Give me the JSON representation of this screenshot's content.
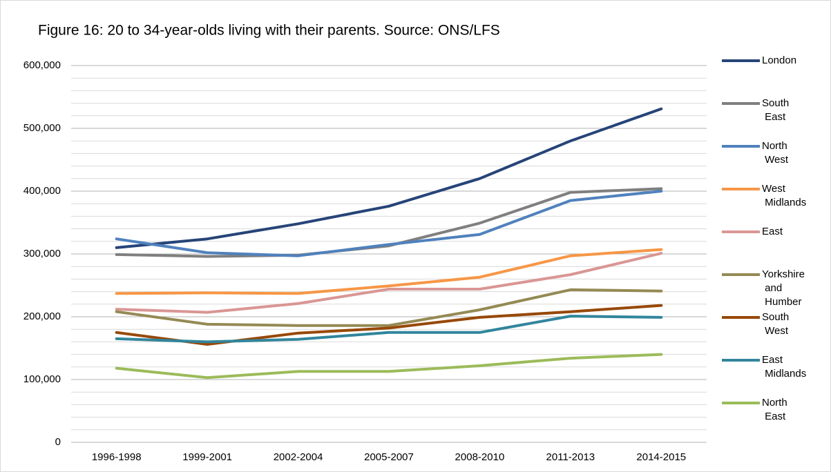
{
  "chart_data": {
    "type": "line",
    "title": "Figure 16: 20 to 34-year-olds living with their parents. Source: ONS/LFS",
    "categories": [
      "1996-1998",
      "1999-2001",
      "2002-2004",
      "2005-2007",
      "2008-2010",
      "2011-2013",
      "2014-2015"
    ],
    "ylim": [
      0,
      600000
    ],
    "yticks": [
      0,
      {
        "value": 100000,
        "label": "100,000"
      },
      {
        "value": 200000,
        "label": "200,000"
      },
      {
        "value": 300000,
        "label": "300,000"
      },
      {
        "value": 400000,
        "label": "400,000"
      },
      {
        "value": 500000,
        "label": "500,000"
      },
      {
        "value": 600000,
        "label": "600,000"
      }
    ],
    "yminorticks": [
      20000,
      40000,
      60000,
      80000,
      120000,
      140000,
      160000,
      180000,
      220000,
      240000,
      260000,
      280000,
      320000,
      340000,
      360000,
      380000,
      420000,
      440000,
      460000,
      480000,
      520000,
      540000,
      560000,
      580000
    ],
    "grid": true,
    "legend": "right",
    "series": [
      {
        "name": "London",
        "color": "#264478",
        "values": [
          310000,
          324000,
          348000,
          376000,
          420000,
          480000,
          531000
        ]
      },
      {
        "name": "South East",
        "color": "#7f7f7f",
        "values": [
          299000,
          296000,
          298000,
          313000,
          349000,
          398000,
          404000
        ]
      },
      {
        "name": "North West",
        "color": "#4f81bd",
        "values": [
          324000,
          302000,
          297000,
          315000,
          331000,
          385000,
          400000
        ]
      },
      {
        "name": "West Midlands",
        "color": "#f79646",
        "values": [
          237000,
          238000,
          237000,
          249000,
          263000,
          297000,
          307000
        ]
      },
      {
        "name": "East",
        "color": "#d99694",
        "values": [
          212000,
          207000,
          221000,
          244000,
          244000,
          267000,
          301000
        ]
      },
      {
        "name": "Yorkshire and Humber",
        "color": "#948a54",
        "values": [
          208000,
          188000,
          186000,
          186000,
          211000,
          243000,
          241000
        ]
      },
      {
        "name": "South West",
        "color": "#974806",
        "values": [
          175000,
          156000,
          174000,
          182000,
          199000,
          208000,
          218000
        ]
      },
      {
        "name": "East Midlands",
        "color": "#31859c",
        "values": [
          165000,
          160000,
          164000,
          175000,
          175000,
          201000,
          199000
        ]
      },
      {
        "name": "North East",
        "color": "#9bbb59",
        "values": [
          118000,
          103000,
          113000,
          113000,
          122000,
          134000,
          140000
        ]
      }
    ]
  }
}
